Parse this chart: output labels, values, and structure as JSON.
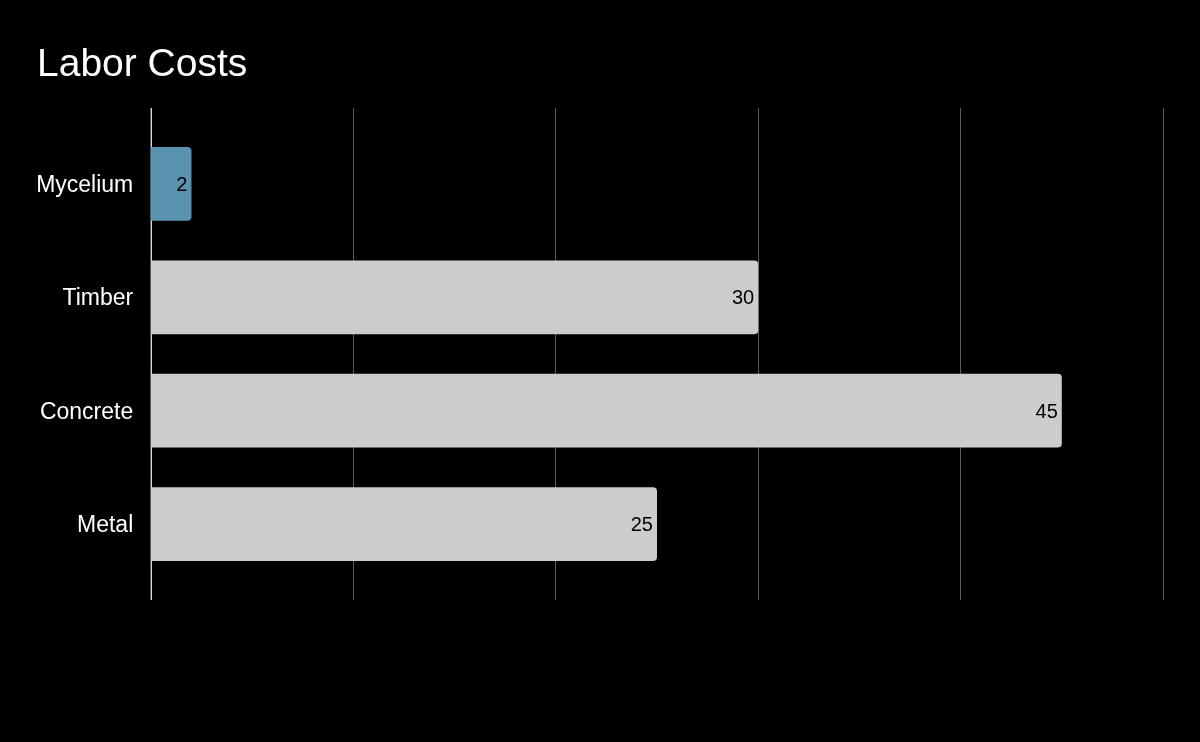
{
  "chart_data": {
    "type": "bar",
    "orientation": "horizontal",
    "title": "Labor Costs",
    "categories": [
      "Mycelium",
      "Timber",
      "Concrete",
      "Metal"
    ],
    "values": [
      2,
      30,
      45,
      25
    ],
    "colors": [
      "#5b92b0",
      "#cccccc",
      "#cccccc",
      "#cccccc"
    ],
    "xlim": [
      0,
      50
    ],
    "xticks": [
      {
        "value": 0,
        "label": null
      },
      {
        "value": 10,
        "label": null
      },
      {
        "value": 20,
        "label": null
      },
      {
        "value": 30,
        "label": null
      },
      {
        "value": 40,
        "label": null
      },
      {
        "value": 50,
        "label": null
      }
    ],
    "tick_labels": "y",
    "grid": "x",
    "data_labels": true
  }
}
